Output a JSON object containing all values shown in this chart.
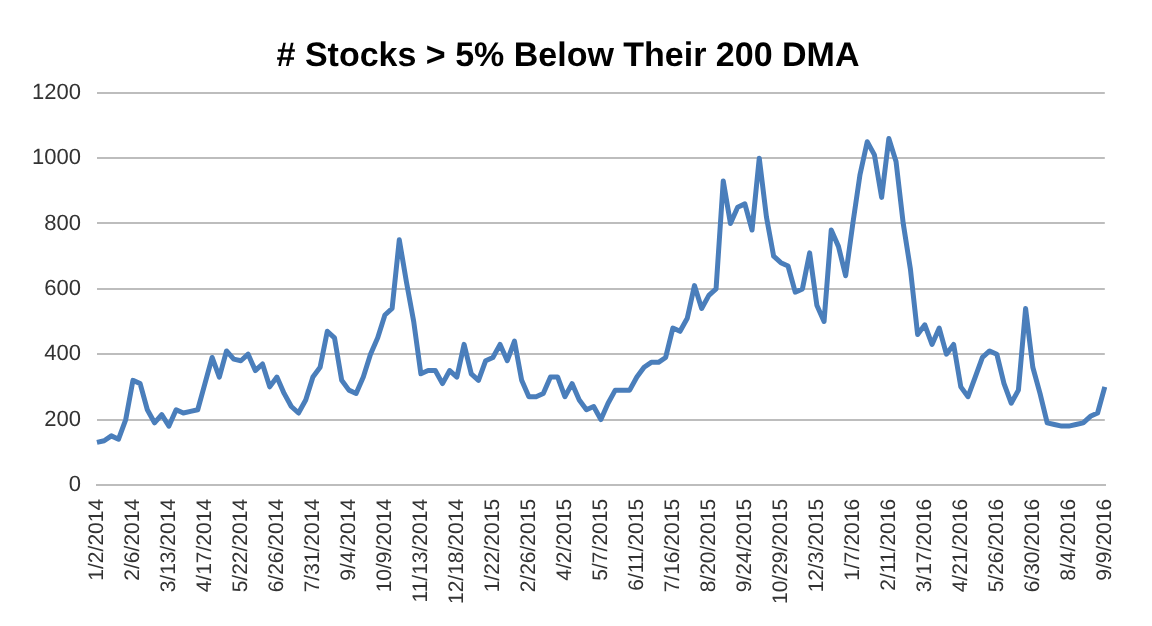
{
  "chart_data": {
    "type": "line",
    "title": "# Stocks > 5% Below Their 200 DMA",
    "categories": [
      "1/2/2014",
      null,
      null,
      null,
      null,
      "2/6/2014",
      null,
      null,
      null,
      null,
      "3/13/2014",
      null,
      null,
      null,
      null,
      "4/17/2014",
      null,
      null,
      null,
      null,
      "5/22/2014",
      null,
      null,
      null,
      null,
      "6/26/2014",
      null,
      null,
      null,
      null,
      "7/31/2014",
      null,
      null,
      null,
      null,
      "9/4/2014",
      null,
      null,
      null,
      null,
      "10/9/2014",
      null,
      null,
      null,
      null,
      "11/13/2014",
      null,
      null,
      null,
      null,
      "12/18/2014",
      null,
      null,
      null,
      null,
      "1/22/2015",
      null,
      null,
      null,
      null,
      "2/26/2015",
      null,
      null,
      null,
      null,
      "4/2/2015",
      null,
      null,
      null,
      null,
      "5/7/2015",
      null,
      null,
      null,
      null,
      "6/11/2015",
      null,
      null,
      null,
      null,
      "7/16/2015",
      null,
      null,
      null,
      null,
      "8/20/2015",
      null,
      null,
      null,
      null,
      "9/24/2015",
      null,
      null,
      null,
      null,
      "10/29/2015",
      null,
      null,
      null,
      null,
      "12/3/2015",
      null,
      null,
      null,
      null,
      "1/7/2016",
      null,
      null,
      null,
      null,
      "2/11/2016",
      null,
      null,
      null,
      null,
      "3/17/2016",
      null,
      null,
      null,
      null,
      "4/21/2016",
      null,
      null,
      null,
      null,
      "5/26/2016",
      null,
      null,
      null,
      null,
      "6/30/2016",
      null,
      null,
      null,
      null,
      "8/4/2016",
      null,
      null,
      null,
      null,
      "9/9/2016"
    ],
    "series": [
      {
        "color": "#4a7ebb",
        "values": [
          130,
          135,
          150,
          140,
          200,
          320,
          310,
          230,
          190,
          215,
          180,
          230,
          220,
          225,
          230,
          310,
          390,
          330,
          410,
          385,
          380,
          400,
          350,
          370,
          300,
          330,
          280,
          240,
          220,
          260,
          330,
          360,
          470,
          450,
          320,
          290,
          280,
          330,
          400,
          450,
          520,
          540,
          750,
          620,
          500,
          340,
          350,
          350,
          310,
          350,
          330,
          430,
          340,
          320,
          380,
          390,
          430,
          380,
          440,
          320,
          270,
          270,
          280,
          330,
          330,
          270,
          310,
          260,
          230,
          240,
          200,
          250,
          290,
          290,
          290,
          330,
          360,
          375,
          375,
          390,
          480,
          470,
          510,
          610,
          540,
          580,
          600,
          930,
          800,
          850,
          860,
          780,
          1000,
          820,
          700,
          680,
          670,
          590,
          600,
          710,
          550,
          500,
          780,
          730,
          640,
          800,
          950,
          1050,
          1010,
          880,
          1060,
          990,
          800,
          660,
          460,
          490,
          430,
          480,
          400,
          430,
          300,
          270,
          330,
          390,
          410,
          400,
          310,
          250,
          290,
          540,
          360,
          280,
          190,
          185,
          180,
          180,
          185,
          190,
          210,
          220,
          300
        ]
      }
    ],
    "ylim": [
      0,
      1200
    ],
    "yticks": [
      0,
      200,
      400,
      600,
      800,
      1000,
      1200
    ],
    "grid": "y",
    "legend": false,
    "marker": "none",
    "line_style": "solid"
  }
}
